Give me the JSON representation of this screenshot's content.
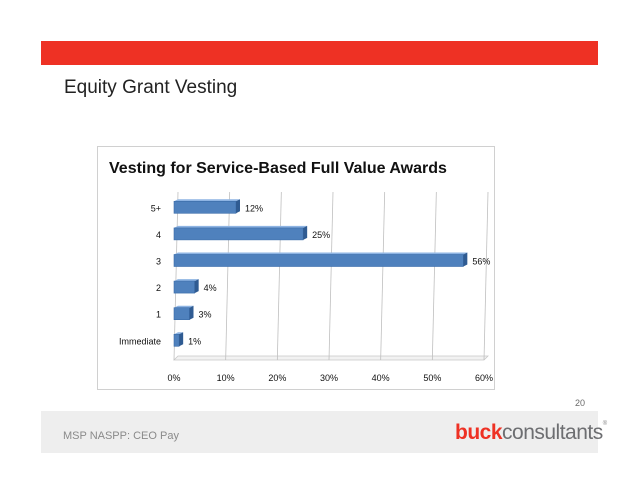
{
  "slide": {
    "title": "Equity Grant Vesting",
    "page_number": "20",
    "footer_text": "MSP NASPP: CEO Pay",
    "logo": {
      "part1": "buck",
      "part2": "consultants",
      "tm": "®"
    },
    "accent_color": "#ee3124",
    "logo_part1_color": "#ee3124",
    "logo_part2_color": "#6d6e71"
  },
  "chart_data": {
    "type": "bar",
    "orientation": "horizontal",
    "title": "Vesting for Service-Based Full Value Awards",
    "categories": [
      "5+",
      "4",
      "3",
      "2",
      "1",
      "Immediate"
    ],
    "values": [
      12,
      25,
      56,
      4,
      3,
      1
    ],
    "value_labels": [
      "12%",
      "25%",
      "56%",
      "4%",
      "3%",
      "1%"
    ],
    "xlim": [
      0,
      60
    ],
    "x_ticks": [
      0,
      10,
      20,
      30,
      40,
      50,
      60
    ],
    "x_tick_labels": [
      "0%",
      "10%",
      "20%",
      "30%",
      "40%",
      "50%",
      "60%"
    ],
    "grid": true,
    "bar_color": "#4f81bd",
    "legend": "none"
  }
}
